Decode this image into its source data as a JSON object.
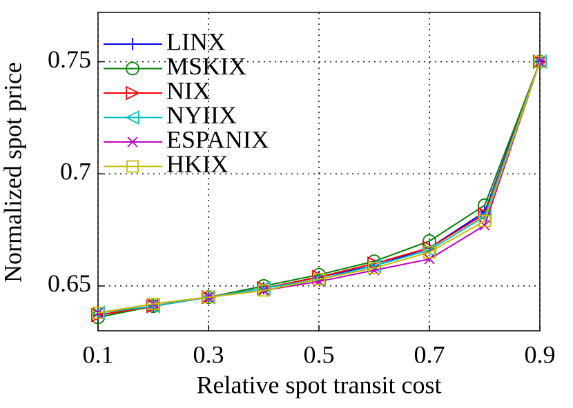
{
  "chart_data": {
    "type": "line",
    "xlabel": "Relative spot transit cost",
    "ylabel": "Normalized spot price",
    "x": [
      0.1,
      0.2,
      0.3,
      0.4,
      0.5,
      0.6,
      0.7,
      0.8,
      0.9
    ],
    "xlim": [
      0.1,
      0.9
    ],
    "xticks": [
      0.1,
      0.3,
      0.5,
      0.7,
      0.9
    ],
    "ylim": [
      0.63,
      0.772
    ],
    "yticks": [
      0.65,
      0.7,
      0.75
    ],
    "grid": true,
    "legend": "upper left",
    "series": [
      {
        "name": "LINX",
        "color": "#0000ff",
        "marker": "plus",
        "values": [
          0.637,
          0.641,
          0.645,
          0.649,
          0.654,
          0.659,
          0.667,
          0.683,
          0.75
        ]
      },
      {
        "name": "MSKIX",
        "color": "#008000",
        "marker": "circle",
        "values": [
          0.636,
          0.641,
          0.645,
          0.65,
          0.655,
          0.661,
          0.67,
          0.686,
          0.75
        ]
      },
      {
        "name": "NIX",
        "color": "#ff0000",
        "marker": "triangle-right",
        "values": [
          0.637,
          0.641,
          0.645,
          0.649,
          0.654,
          0.66,
          0.667,
          0.682,
          0.75
        ]
      },
      {
        "name": "NYIIX",
        "color": "#00bfbf",
        "marker": "triangle-left",
        "values": [
          0.638,
          0.641,
          0.645,
          0.649,
          0.653,
          0.659,
          0.666,
          0.681,
          0.75
        ]
      },
      {
        "name": "ESPANIX",
        "color": "#bf00bf",
        "marker": "x",
        "values": [
          0.638,
          0.642,
          0.645,
          0.648,
          0.652,
          0.657,
          0.662,
          0.677,
          0.75
        ]
      },
      {
        "name": "HKIX",
        "color": "#bfbf00",
        "marker": "square",
        "values": [
          0.638,
          0.642,
          0.645,
          0.648,
          0.653,
          0.658,
          0.665,
          0.679,
          0.75
        ]
      }
    ]
  }
}
